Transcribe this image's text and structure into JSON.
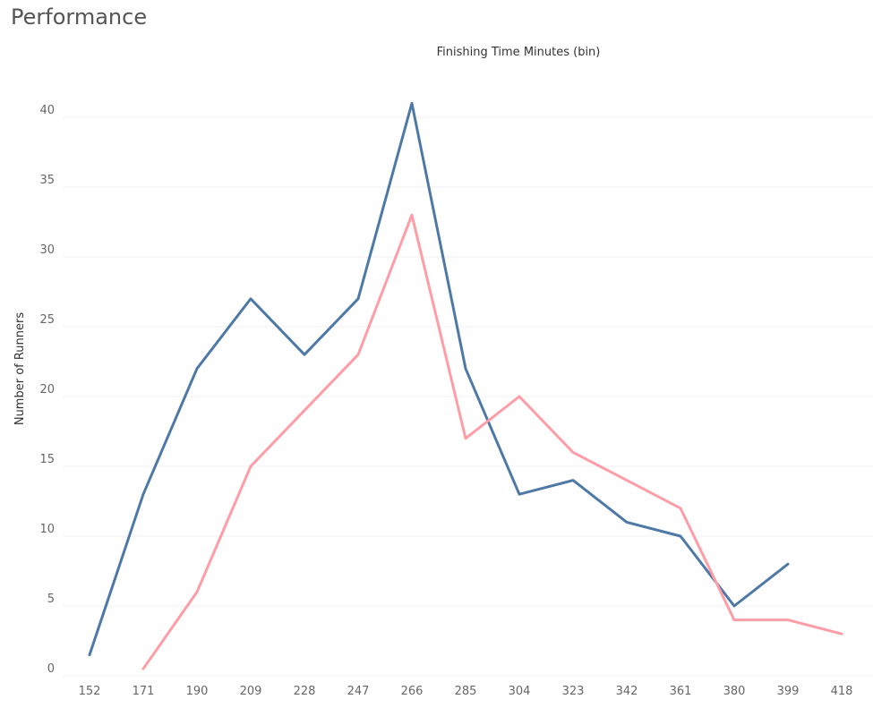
{
  "page": {
    "title": "Performance"
  },
  "chart_data": {
    "type": "line",
    "title": "Finishing Time Minutes (bin)",
    "xlabel": "Finishing Time Minutes (bin)",
    "ylabel": "Number of Runners",
    "categories": [
      "152",
      "171",
      "190",
      "209",
      "228",
      "247",
      "266",
      "285",
      "304",
      "323",
      "342",
      "361",
      "380",
      "399",
      "418"
    ],
    "ylim": [
      0,
      43
    ],
    "yticks": [
      0,
      5,
      10,
      15,
      20,
      25,
      30,
      35,
      40
    ],
    "grid": true,
    "legend": "none",
    "series": [
      {
        "color": "#4e79a7",
        "values": [
          1.5,
          13,
          22,
          27,
          23,
          27,
          41,
          22,
          13,
          14,
          11,
          10,
          5,
          8,
          null
        ]
      },
      {
        "color": "#ff9da7",
        "values": [
          null,
          0.5,
          6,
          15,
          19,
          23,
          33,
          17,
          20,
          16,
          14,
          12,
          4,
          4,
          3
        ]
      }
    ]
  }
}
